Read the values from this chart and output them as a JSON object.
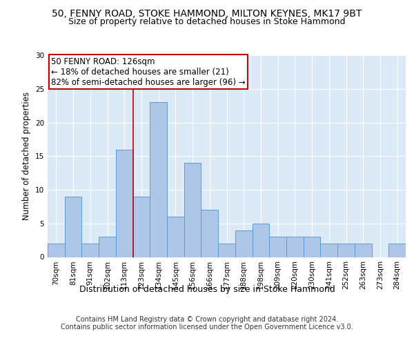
{
  "title1": "50, FENNY ROAD, STOKE HAMMOND, MILTON KEYNES, MK17 9BT",
  "title2": "Size of property relative to detached houses in Stoke Hammond",
  "xlabel": "Distribution of detached houses by size in Stoke Hammond",
  "ylabel": "Number of detached properties",
  "categories": [
    "70sqm",
    "81sqm",
    "91sqm",
    "102sqm",
    "113sqm",
    "123sqm",
    "134sqm",
    "145sqm",
    "156sqm",
    "166sqm",
    "177sqm",
    "188sqm",
    "198sqm",
    "209sqm",
    "220sqm",
    "230sqm",
    "241sqm",
    "252sqm",
    "263sqm",
    "273sqm",
    "284sqm"
  ],
  "values": [
    2,
    9,
    2,
    3,
    16,
    9,
    23,
    6,
    14,
    7,
    2,
    4,
    5,
    3,
    3,
    3,
    2,
    2,
    2,
    0,
    2
  ],
  "bar_color": "#aec6e8",
  "bar_edge_color": "#5b9bd5",
  "vline_x": 4.5,
  "vline_color": "#c00000",
  "annotation_text": "50 FENNY ROAD: 126sqm\n← 18% of detached houses are smaller (21)\n82% of semi-detached houses are larger (96) →",
  "annotation_box_color": "#ffffff",
  "annotation_box_edge": "#c00000",
  "ylim": [
    0,
    30
  ],
  "yticks": [
    0,
    5,
    10,
    15,
    20,
    25,
    30
  ],
  "footnote": "Contains HM Land Registry data © Crown copyright and database right 2024.\nContains public sector information licensed under the Open Government Licence v3.0.",
  "bg_color": "#dce9f7",
  "fig_bg_color": "#ffffff",
  "title1_fontsize": 10,
  "title2_fontsize": 9,
  "xlabel_fontsize": 9,
  "ylabel_fontsize": 8.5,
  "tick_fontsize": 7.5,
  "annotation_fontsize": 8.5,
  "footnote_fontsize": 7
}
